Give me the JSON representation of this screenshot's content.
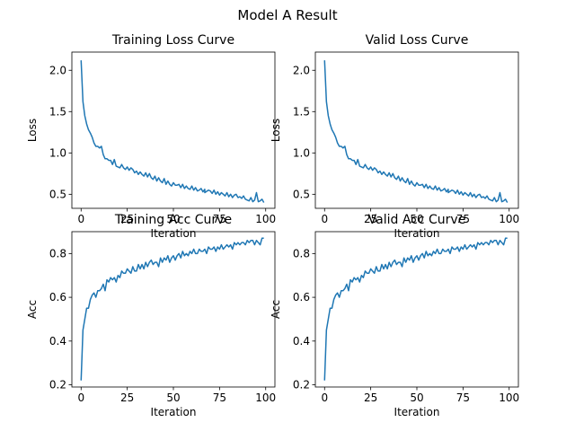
{
  "figure": {
    "suptitle": "Model A Result"
  },
  "colors": {
    "line": "#1f77b4",
    "axes": "#000000",
    "background": "#ffffff"
  },
  "chart_data": [
    {
      "type": "line",
      "title": "Training Loss Curve",
      "xlabel": "Iteration",
      "ylabel": "Loss",
      "xlim": [
        -5,
        105
      ],
      "ylim": [
        0.33,
        2.22
      ],
      "xticks": [
        0,
        25,
        50,
        75,
        100
      ],
      "yticks": [
        0.5,
        1.0,
        1.5,
        2.0
      ],
      "ytick_labels": [
        "0.5",
        "1.0",
        "1.5",
        "2.0"
      ],
      "grid": false,
      "series": [
        {
          "x": [
            0,
            1,
            2,
            3,
            4,
            5,
            6,
            7,
            8,
            9,
            10,
            11,
            12,
            13,
            14,
            15,
            16,
            17,
            18,
            19,
            20,
            21,
            22,
            23,
            24,
            25,
            26,
            27,
            28,
            29,
            30,
            31,
            32,
            33,
            34,
            35,
            36,
            37,
            38,
            39,
            40,
            41,
            42,
            43,
            44,
            45,
            46,
            47,
            48,
            49,
            50,
            51,
            52,
            53,
            54,
            55,
            56,
            57,
            58,
            59,
            60,
            61,
            62,
            63,
            64,
            65,
            66,
            67,
            67,
            69,
            70,
            71,
            72,
            73,
            74,
            75,
            76,
            77,
            78,
            79,
            80,
            81,
            82,
            83,
            84,
            85,
            86,
            87,
            88,
            89,
            90,
            91,
            92,
            93,
            94,
            95,
            96,
            97,
            98,
            99
          ],
          "y": [
            2.12,
            1.62,
            1.45,
            1.35,
            1.28,
            1.24,
            1.19,
            1.12,
            1.08,
            1.08,
            1.06,
            1.08,
            0.98,
            0.93,
            0.93,
            0.91,
            0.91,
            0.86,
            0.92,
            0.84,
            0.83,
            0.82,
            0.86,
            0.82,
            0.8,
            0.83,
            0.79,
            0.82,
            0.8,
            0.76,
            0.78,
            0.74,
            0.77,
            0.74,
            0.72,
            0.76,
            0.71,
            0.75,
            0.7,
            0.68,
            0.72,
            0.66,
            0.7,
            0.66,
            0.64,
            0.69,
            0.62,
            0.66,
            0.62,
            0.6,
            0.64,
            0.61,
            0.61,
            0.62,
            0.58,
            0.62,
            0.57,
            0.6,
            0.57,
            0.56,
            0.6,
            0.55,
            0.58,
            0.54,
            0.55,
            0.57,
            0.53,
            0.56,
            0.52,
            0.55,
            0.54,
            0.51,
            0.55,
            0.5,
            0.53,
            0.49,
            0.52,
            0.5,
            0.48,
            0.52,
            0.47,
            0.5,
            0.46,
            0.49,
            0.5,
            0.46,
            0.47,
            0.45,
            0.48,
            0.44,
            0.43,
            0.42,
            0.46,
            0.41,
            0.43,
            0.52,
            0.41,
            0.42,
            0.44,
            0.4
          ]
        }
      ]
    },
    {
      "type": "line",
      "title": "Valid Loss Curve",
      "xlabel": "Iteration",
      "ylabel": "Loss",
      "xlim": [
        -5,
        105
      ],
      "ylim": [
        0.33,
        2.22
      ],
      "xticks": [
        0,
        25,
        50,
        75,
        100
      ],
      "yticks": [
        0.5,
        1.0,
        1.5,
        2.0
      ],
      "ytick_labels": [
        "0.5",
        "1.0",
        "1.5",
        "2.0"
      ],
      "grid": false,
      "series": [
        {
          "x": [
            0,
            1,
            2,
            3,
            4,
            5,
            6,
            7,
            8,
            9,
            10,
            11,
            12,
            13,
            14,
            15,
            16,
            17,
            18,
            19,
            20,
            21,
            22,
            23,
            24,
            25,
            26,
            27,
            28,
            29,
            30,
            31,
            32,
            33,
            34,
            35,
            36,
            37,
            38,
            39,
            40,
            41,
            42,
            43,
            44,
            45,
            46,
            47,
            48,
            49,
            50,
            51,
            52,
            53,
            54,
            55,
            56,
            57,
            58,
            59,
            60,
            61,
            62,
            63,
            64,
            65,
            66,
            67,
            67,
            69,
            70,
            71,
            72,
            73,
            74,
            75,
            76,
            77,
            78,
            79,
            80,
            81,
            82,
            83,
            84,
            85,
            86,
            87,
            88,
            89,
            90,
            91,
            92,
            93,
            94,
            95,
            96,
            97,
            98,
            99
          ],
          "y": [
            2.12,
            1.62,
            1.45,
            1.35,
            1.28,
            1.24,
            1.19,
            1.12,
            1.08,
            1.08,
            1.06,
            1.08,
            0.98,
            0.93,
            0.93,
            0.91,
            0.91,
            0.86,
            0.92,
            0.84,
            0.83,
            0.82,
            0.86,
            0.82,
            0.8,
            0.83,
            0.79,
            0.82,
            0.8,
            0.76,
            0.78,
            0.74,
            0.77,
            0.74,
            0.72,
            0.76,
            0.71,
            0.75,
            0.7,
            0.68,
            0.72,
            0.66,
            0.7,
            0.66,
            0.64,
            0.69,
            0.62,
            0.66,
            0.62,
            0.6,
            0.64,
            0.61,
            0.61,
            0.62,
            0.58,
            0.62,
            0.57,
            0.6,
            0.57,
            0.56,
            0.6,
            0.55,
            0.58,
            0.54,
            0.55,
            0.57,
            0.53,
            0.56,
            0.52,
            0.55,
            0.54,
            0.51,
            0.55,
            0.5,
            0.53,
            0.49,
            0.52,
            0.5,
            0.48,
            0.52,
            0.47,
            0.5,
            0.46,
            0.49,
            0.5,
            0.46,
            0.47,
            0.45,
            0.48,
            0.44,
            0.43,
            0.42,
            0.46,
            0.41,
            0.43,
            0.52,
            0.41,
            0.42,
            0.44,
            0.4
          ]
        }
      ]
    },
    {
      "type": "line",
      "title": "Training Acc Curve",
      "xlabel": "Iteration",
      "ylabel": "Acc",
      "xlim": [
        -5,
        105
      ],
      "ylim": [
        0.19,
        0.9
      ],
      "xticks": [
        0,
        25,
        50,
        75,
        100
      ],
      "yticks": [
        0.2,
        0.4,
        0.6,
        0.8
      ],
      "ytick_labels": [
        "0.2",
        "0.4",
        "0.6",
        "0.8"
      ],
      "grid": false,
      "series": [
        {
          "x": [
            0,
            1,
            2,
            3,
            4,
            5,
            6,
            7,
            8,
            9,
            10,
            11,
            12,
            13,
            14,
            15,
            16,
            17,
            18,
            19,
            20,
            21,
            22,
            23,
            24,
            25,
            26,
            27,
            28,
            29,
            30,
            31,
            32,
            33,
            34,
            35,
            36,
            37,
            38,
            39,
            40,
            41,
            42,
            43,
            44,
            45,
            46,
            47,
            48,
            49,
            50,
            51,
            52,
            53,
            54,
            55,
            56,
            57,
            58,
            59,
            60,
            61,
            62,
            63,
            64,
            65,
            66,
            67,
            68,
            69,
            70,
            71,
            72,
            73,
            74,
            75,
            76,
            77,
            78,
            79,
            80,
            81,
            82,
            83,
            84,
            85,
            86,
            87,
            88,
            89,
            90,
            91,
            92,
            93,
            94,
            95,
            96,
            97,
            98,
            99
          ],
          "y": [
            0.22,
            0.45,
            0.5,
            0.55,
            0.55,
            0.59,
            0.61,
            0.62,
            0.6,
            0.63,
            0.63,
            0.64,
            0.66,
            0.63,
            0.68,
            0.67,
            0.69,
            0.68,
            0.69,
            0.67,
            0.7,
            0.69,
            0.72,
            0.71,
            0.71,
            0.73,
            0.72,
            0.71,
            0.74,
            0.72,
            0.72,
            0.75,
            0.73,
            0.75,
            0.73,
            0.76,
            0.74,
            0.76,
            0.77,
            0.75,
            0.76,
            0.76,
            0.74,
            0.78,
            0.76,
            0.78,
            0.77,
            0.79,
            0.76,
            0.78,
            0.79,
            0.77,
            0.79,
            0.8,
            0.78,
            0.81,
            0.79,
            0.8,
            0.79,
            0.81,
            0.8,
            0.82,
            0.8,
            0.8,
            0.82,
            0.81,
            0.81,
            0.82,
            0.8,
            0.83,
            0.82,
            0.82,
            0.83,
            0.81,
            0.83,
            0.82,
            0.84,
            0.82,
            0.83,
            0.84,
            0.83,
            0.84,
            0.82,
            0.85,
            0.84,
            0.85,
            0.84,
            0.85,
            0.85,
            0.84,
            0.86,
            0.85,
            0.86,
            0.86,
            0.84,
            0.86,
            0.85,
            0.84,
            0.87,
            0.87
          ]
        }
      ]
    },
    {
      "type": "line",
      "title": "Valid Acc Curve",
      "xlabel": "Iteration",
      "ylabel": "Acc",
      "xlim": [
        -5,
        105
      ],
      "ylim": [
        0.19,
        0.9
      ],
      "xticks": [
        0,
        25,
        50,
        75,
        100
      ],
      "yticks": [
        0.2,
        0.4,
        0.6,
        0.8
      ],
      "ytick_labels": [
        "0.2",
        "0.4",
        "0.6",
        "0.8"
      ],
      "grid": false,
      "series": [
        {
          "x": [
            0,
            1,
            2,
            3,
            4,
            5,
            6,
            7,
            8,
            9,
            10,
            11,
            12,
            13,
            14,
            15,
            16,
            17,
            18,
            19,
            20,
            21,
            22,
            23,
            24,
            25,
            26,
            27,
            28,
            29,
            30,
            31,
            32,
            33,
            34,
            35,
            36,
            37,
            38,
            39,
            40,
            41,
            42,
            43,
            44,
            45,
            46,
            47,
            48,
            49,
            50,
            51,
            52,
            53,
            54,
            55,
            56,
            57,
            58,
            59,
            60,
            61,
            62,
            63,
            64,
            65,
            66,
            67,
            68,
            69,
            70,
            71,
            72,
            73,
            74,
            75,
            76,
            77,
            78,
            79,
            80,
            81,
            82,
            83,
            84,
            85,
            86,
            87,
            88,
            89,
            90,
            91,
            92,
            93,
            94,
            95,
            96,
            97,
            98,
            99
          ],
          "y": [
            0.22,
            0.45,
            0.5,
            0.55,
            0.55,
            0.59,
            0.61,
            0.62,
            0.6,
            0.63,
            0.63,
            0.64,
            0.66,
            0.63,
            0.68,
            0.67,
            0.69,
            0.68,
            0.69,
            0.67,
            0.7,
            0.69,
            0.72,
            0.71,
            0.71,
            0.73,
            0.72,
            0.71,
            0.74,
            0.72,
            0.72,
            0.75,
            0.73,
            0.75,
            0.73,
            0.76,
            0.74,
            0.76,
            0.77,
            0.75,
            0.76,
            0.76,
            0.74,
            0.78,
            0.76,
            0.78,
            0.77,
            0.79,
            0.76,
            0.78,
            0.79,
            0.77,
            0.79,
            0.8,
            0.78,
            0.81,
            0.79,
            0.8,
            0.79,
            0.81,
            0.8,
            0.82,
            0.8,
            0.8,
            0.82,
            0.81,
            0.81,
            0.82,
            0.8,
            0.83,
            0.82,
            0.82,
            0.83,
            0.81,
            0.83,
            0.82,
            0.84,
            0.82,
            0.83,
            0.84,
            0.83,
            0.84,
            0.82,
            0.85,
            0.84,
            0.85,
            0.84,
            0.85,
            0.85,
            0.84,
            0.86,
            0.85,
            0.86,
            0.86,
            0.84,
            0.86,
            0.85,
            0.84,
            0.87,
            0.87
          ]
        }
      ]
    }
  ]
}
